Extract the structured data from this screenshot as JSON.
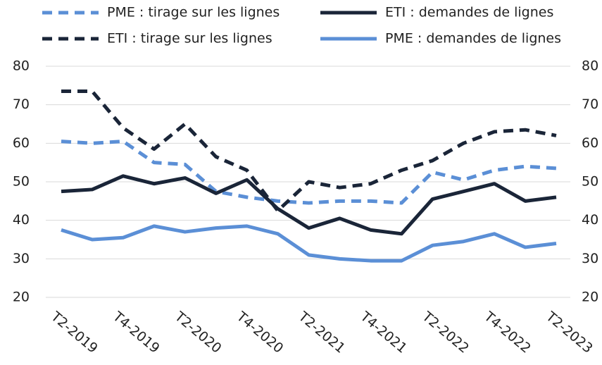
{
  "chart_data": {
    "type": "line",
    "categories": [
      "T2-2019",
      null,
      "T4-2019",
      null,
      "T2-2020",
      null,
      "T4-2020",
      null,
      "T2-2021",
      null,
      "T4-2021",
      null,
      "T2-2022",
      null,
      "T4-2022",
      null,
      "T2-2023"
    ],
    "series": [
      {
        "name": "PME : tirage sur les lignes",
        "color": "#5b8fd6",
        "dash": true,
        "values": [
          60.5,
          60,
          60.5,
          55,
          54.5,
          47.5,
          46,
          45,
          44.5,
          45,
          45,
          44.5,
          52.5,
          50.5,
          53,
          54,
          53.5
        ]
      },
      {
        "name": "ETI : demandes de lignes",
        "color": "#1a2538",
        "dash": false,
        "values": [
          47.5,
          48,
          51.5,
          49.5,
          51,
          47,
          50.5,
          43,
          38,
          40.5,
          37.5,
          36.5,
          45.5,
          47.5,
          49.5,
          45,
          46
        ]
      },
      {
        "name": "ETI : tirage sur les lignes",
        "color": "#1a2538",
        "dash": true,
        "values": [
          73.5,
          73.5,
          64,
          58.5,
          65,
          56.5,
          53,
          42.5,
          50,
          48.5,
          49.5,
          53,
          55.5,
          60,
          63,
          63.5,
          62
        ]
      },
      {
        "name": "PME : demandes de lignes",
        "color": "#5b8fd6",
        "dash": false,
        "values": [
          37.5,
          35,
          35.5,
          38.5,
          37,
          38,
          38.5,
          36.5,
          31,
          30,
          29.5,
          29.5,
          33.5,
          34.5,
          36.5,
          33,
          34
        ]
      }
    ],
    "ylim": [
      20,
      80
    ],
    "yticks": [
      20,
      30,
      40,
      50,
      60,
      70,
      80
    ],
    "y2lim": [
      20,
      80
    ],
    "y2ticks": [
      20,
      30,
      40,
      50,
      60,
      70,
      80
    ],
    "grid": true
  }
}
